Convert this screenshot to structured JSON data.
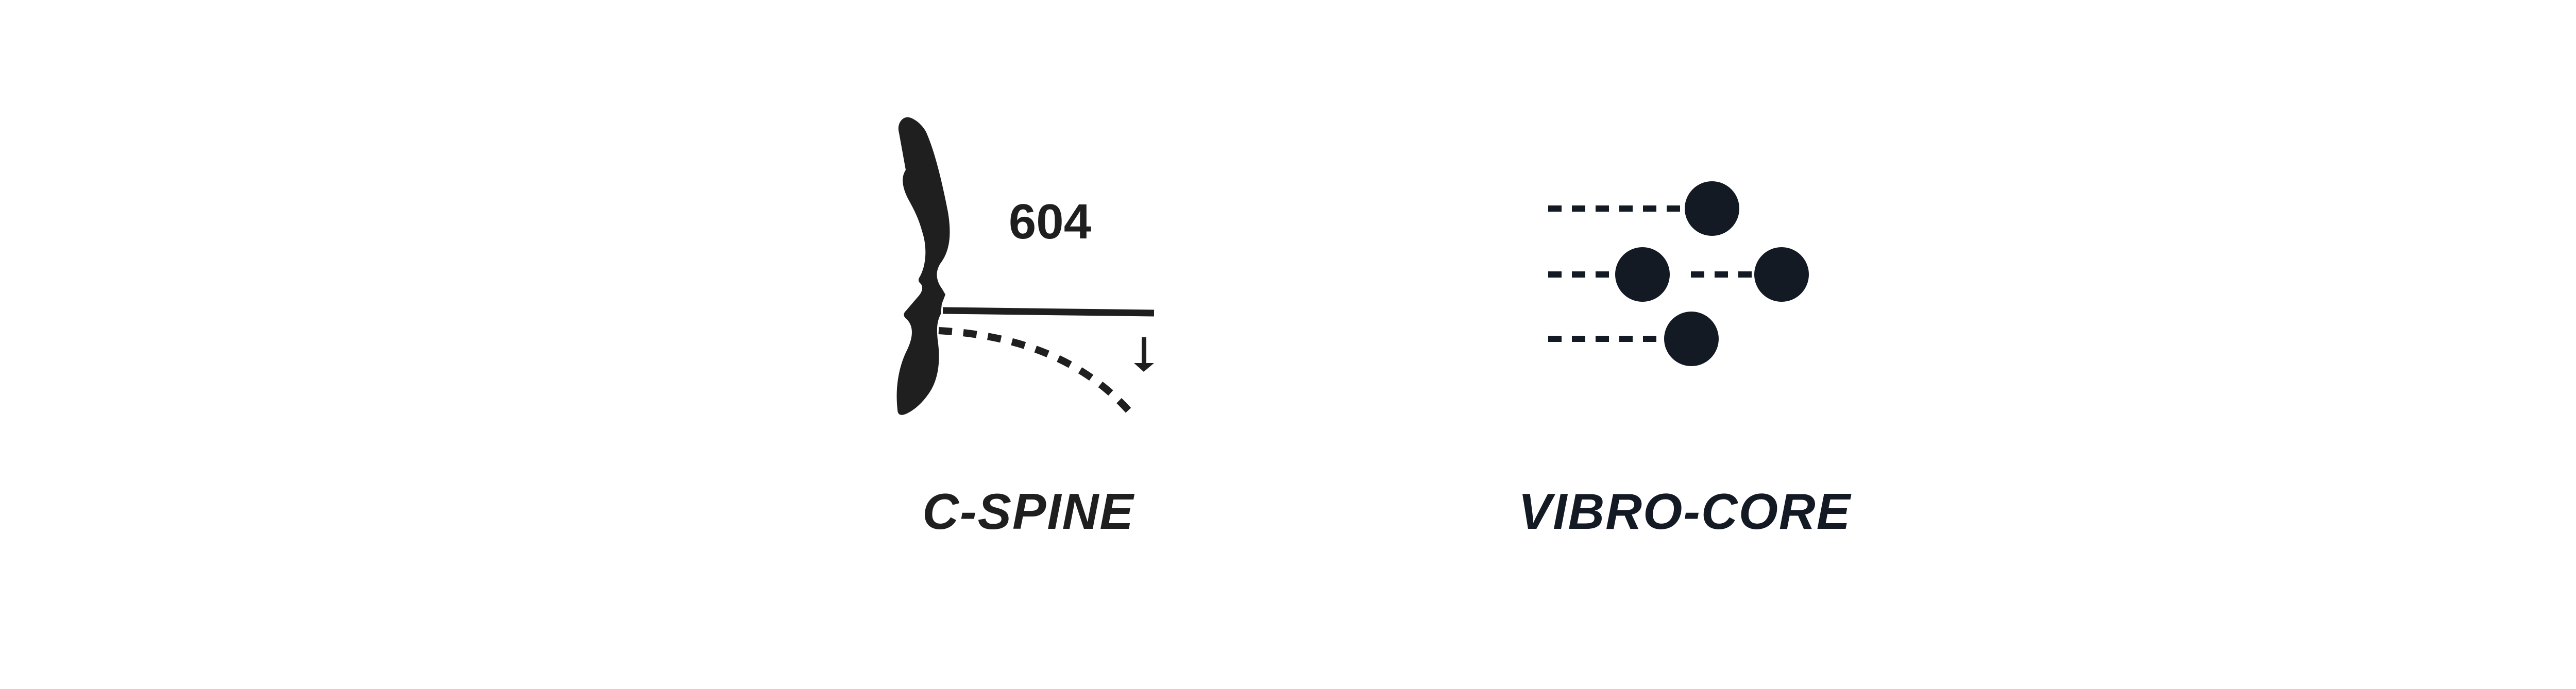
{
  "features": [
    {
      "label": "C-SPINE",
      "icon": "head-neck-tilt-icon",
      "angle_value": "604",
      "color": "#1f1f1f"
    },
    {
      "label": "VIBRO-CORE",
      "icon": "vibration-dots-icon",
      "color": "#131a24"
    }
  ],
  "background": "#ffffff"
}
